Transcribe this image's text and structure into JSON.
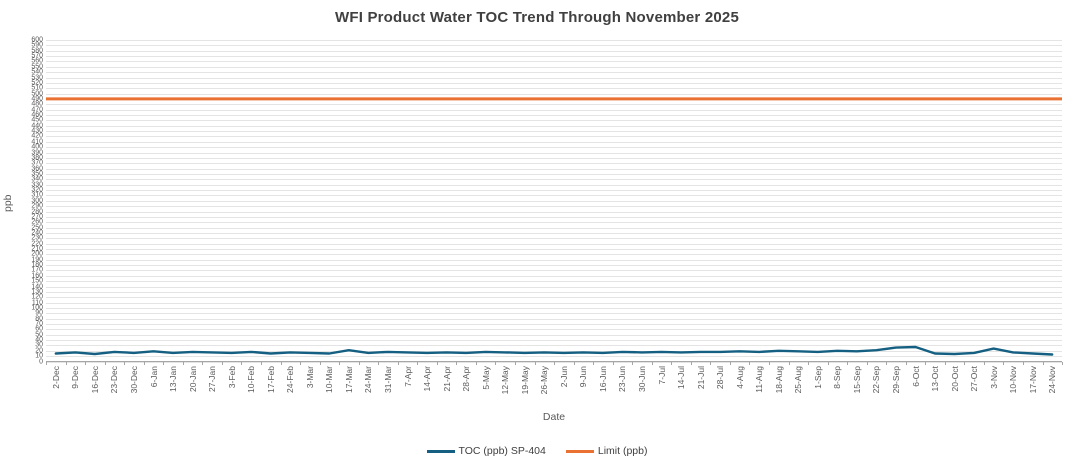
{
  "chart_data": {
    "type": "line",
    "title": "WFI Product Water TOC Trend Through November 2025",
    "xlabel": "Date",
    "ylabel": "ppb",
    "ylim": [
      0,
      600
    ],
    "y_tick_step": 10,
    "y_tick_labels": [
      600,
      590,
      580,
      570,
      560,
      550,
      540,
      530,
      520,
      510,
      500,
      490,
      480,
      470,
      460,
      450,
      440,
      430,
      420,
      410,
      400,
      390,
      380,
      370,
      360,
      350,
      340,
      330,
      320,
      310,
      300,
      290,
      280,
      270,
      260,
      250,
      240,
      230,
      220,
      210,
      200,
      190,
      180,
      170,
      160,
      150,
      140,
      130,
      120,
      110,
      100,
      90,
      80,
      70,
      60,
      50,
      40,
      30,
      20,
      10,
      0
    ],
    "grid": "horizontal",
    "legend_position": "bottom",
    "categories": [
      "2-Dec",
      "9-Dec",
      "16-Dec",
      "23-Dec",
      "30-Dec",
      "6-Jan",
      "13-Jan",
      "20-Jan",
      "27-Jan",
      "3-Feb",
      "10-Feb",
      "17-Feb",
      "24-Feb",
      "3-Mar",
      "10-Mar",
      "17-Mar",
      "24-Mar",
      "31-Mar",
      "7-Apr",
      "14-Apr",
      "21-Apr",
      "28-Apr",
      "5-May",
      "12-May",
      "19-May",
      "26-May",
      "2-Jun",
      "9-Jun",
      "16-Jun",
      "23-Jun",
      "30-Jun",
      "7-Jul",
      "14-Jul",
      "21-Jul",
      "28-Jul",
      "4-Aug",
      "11-Aug",
      "18-Aug",
      "25-Aug",
      "1-Sep",
      "8-Sep",
      "15-Sep",
      "22-Sep",
      "29-Sep",
      "6-Oct",
      "13-Oct",
      "20-Oct",
      "27-Oct",
      "3-Nov",
      "10-Nov",
      "17-Nov",
      "24-Nov"
    ],
    "series": [
      {
        "name": "TOC (ppb) SP-404",
        "type": "line",
        "color": "#156082",
        "values": [
          15,
          17,
          14,
          18,
          16,
          19,
          16,
          18,
          17,
          16,
          18,
          15,
          17,
          16,
          15,
          21,
          16,
          18,
          17,
          16,
          17,
          16,
          18,
          17,
          16,
          17,
          16,
          17,
          16,
          18,
          17,
          18,
          17,
          18,
          18,
          19,
          18,
          20,
          19,
          18,
          20,
          19,
          21,
          26,
          27,
          15,
          14,
          16,
          24,
          17,
          15,
          13
        ]
      },
      {
        "name": "Limit (ppb)",
        "type": "constant-line",
        "color": "#E97132",
        "value": 490
      }
    ]
  },
  "colors": {
    "toc_line": "#156082",
    "limit_line": "#E97132",
    "gridline": "#e4e4e4",
    "axis": "#a6a6a6",
    "tick_text": "#595959",
    "title_text": "#404040"
  }
}
